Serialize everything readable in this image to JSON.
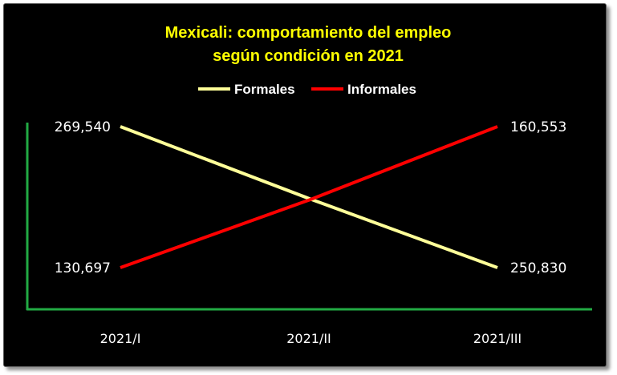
{
  "chart_data": {
    "type": "line",
    "title": "Mexicali: comportamiento del empleo",
    "subtitle": "según condición en 2021",
    "categories": [
      "2021/I",
      "2021/II",
      "2021/III"
    ],
    "series": [
      {
        "name": "Formales",
        "values": [
          269540,
          260000,
          250830
        ],
        "labels": [
          "269,540",
          "",
          "250,830"
        ],
        "color": "#ffff99"
      },
      {
        "name": "Informales",
        "values": [
          130697,
          145000,
          160553
        ],
        "labels": [
          "130,697",
          "",
          "160,553"
        ],
        "color": "#ff0000"
      }
    ],
    "axis_color": "#22aa44",
    "background": "#000000",
    "grid": false,
    "legend_position": "top"
  }
}
